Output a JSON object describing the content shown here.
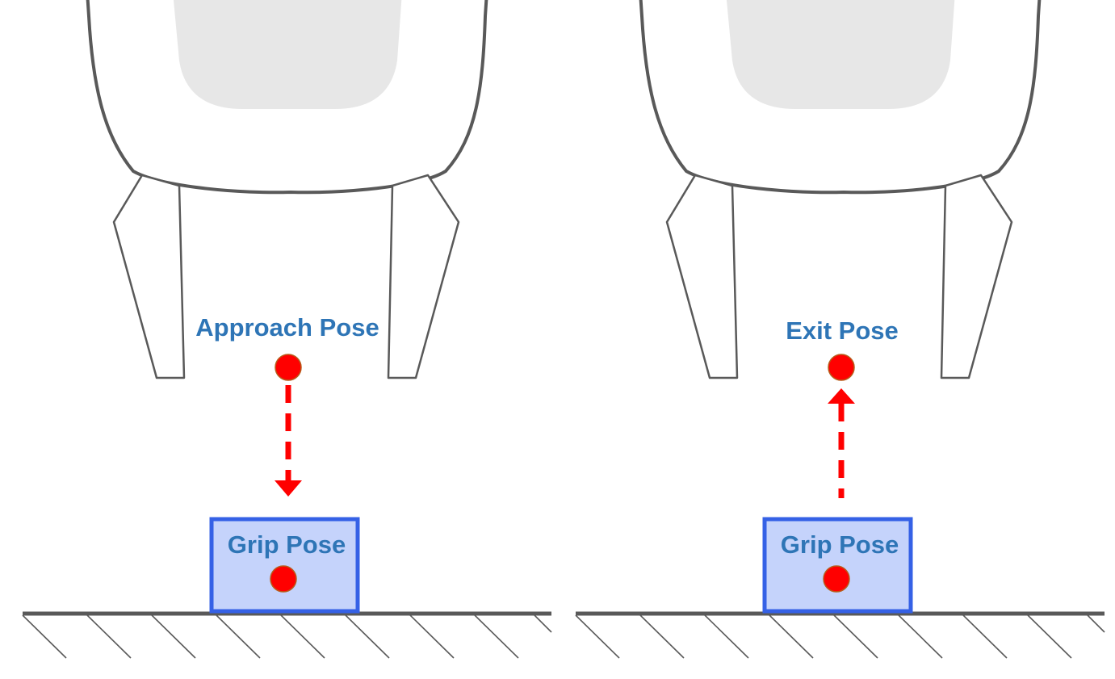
{
  "panels": [
    {
      "id": "approach",
      "target_label": "Approach Pose",
      "object_label": "Grip Pose",
      "motion_direction": "down"
    },
    {
      "id": "exit",
      "target_label": "Exit Pose",
      "object_label": "Grip Pose",
      "motion_direction": "up"
    }
  ],
  "colors": {
    "label_text": "#2e75b6",
    "pose_point": "#ff0000",
    "motion_arrow": "#ff0000",
    "object_fill": "#c5d3fb",
    "object_border": "#3561e6",
    "gripper_outline": "#595959",
    "ground": "#595959"
  }
}
